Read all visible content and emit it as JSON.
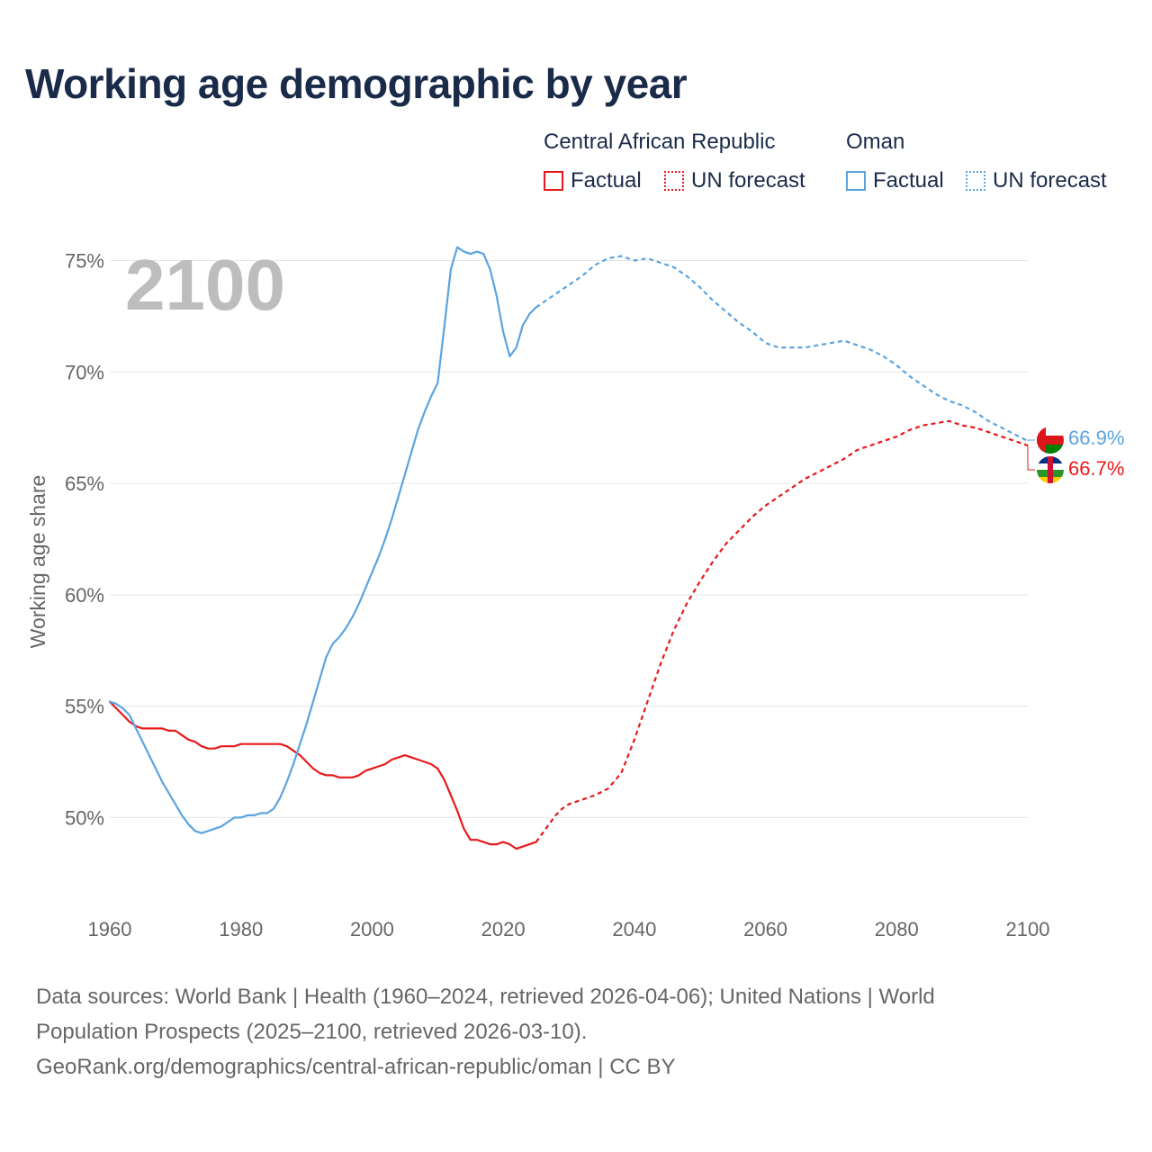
{
  "title": "Working age demographic by year",
  "legend": {
    "groups": [
      {
        "name": "Central African Republic",
        "factual": "Factual",
        "forecast": "UN forecast",
        "color": "#e8191b"
      },
      {
        "name": "Oman",
        "factual": "Factual",
        "forecast": "UN forecast",
        "color": "#5aa4e0"
      }
    ]
  },
  "year_display": "2100",
  "end_labels": {
    "oman": "66.9%",
    "car": "66.7%"
  },
  "flag_icons": {
    "oman": "oman-flag-icon",
    "car": "central-african-republic-flag-icon"
  },
  "source_lines": [
    "Data sources: World Bank | Health (1960–2024, retrieved 2026-04-06); United Nations | World",
    "Population Prospects (2025–2100, retrieved 2026-03-10).",
    "GeoRank.org/demographics/central-african-republic/oman | CC BY"
  ],
  "chart_data": {
    "type": "line",
    "title": "Working age demographic by year",
    "xlabel": "",
    "ylabel": "Working age share",
    "xlim": [
      1960,
      2100
    ],
    "ylim": [
      46.3,
      77
    ],
    "x_ticks": [
      1960,
      1980,
      2000,
      2020,
      2040,
      2060,
      2080,
      2100
    ],
    "y_ticks": [
      50,
      55,
      60,
      65,
      70,
      75
    ],
    "y_tick_labels": [
      "50%",
      "55%",
      "60%",
      "65%",
      "70%",
      "75%"
    ],
    "grid": true,
    "factual_until": 2025,
    "series": [
      {
        "name": "Central African Republic",
        "color": "#e8191b",
        "x": [
          1960,
          1961,
          1962,
          1963,
          1964,
          1965,
          1966,
          1967,
          1968,
          1969,
          1970,
          1971,
          1972,
          1973,
          1974,
          1975,
          1976,
          1977,
          1978,
          1979,
          1980,
          1981,
          1982,
          1983,
          1984,
          1985,
          1986,
          1987,
          1988,
          1989,
          1990,
          1991,
          1992,
          1993,
          1994,
          1995,
          1996,
          1997,
          1998,
          1999,
          2000,
          2001,
          2002,
          2003,
          2004,
          2005,
          2006,
          2007,
          2008,
          2009,
          2010,
          2011,
          2012,
          2013,
          2014,
          2015,
          2016,
          2017,
          2018,
          2019,
          2020,
          2021,
          2022,
          2023,
          2024,
          2025,
          2026,
          2027,
          2028,
          2029,
          2030,
          2032,
          2034,
          2036,
          2038,
          2040,
          2042,
          2044,
          2046,
          2048,
          2050,
          2052,
          2054,
          2056,
          2058,
          2060,
          2062,
          2064,
          2066,
          2068,
          2070,
          2072,
          2074,
          2076,
          2078,
          2080,
          2082,
          2084,
          2086,
          2088,
          2090,
          2092,
          2094,
          2096,
          2098,
          2100
        ],
        "values": [
          55.2,
          54.9,
          54.6,
          54.3,
          54.1,
          54.0,
          54.0,
          54.0,
          54.0,
          53.9,
          53.9,
          53.7,
          53.5,
          53.4,
          53.2,
          53.1,
          53.1,
          53.2,
          53.2,
          53.2,
          53.3,
          53.3,
          53.3,
          53.3,
          53.3,
          53.3,
          53.3,
          53.2,
          53.0,
          52.8,
          52.5,
          52.2,
          52.0,
          51.9,
          51.9,
          51.8,
          51.8,
          51.8,
          51.9,
          52.1,
          52.2,
          52.3,
          52.4,
          52.6,
          52.7,
          52.8,
          52.7,
          52.6,
          52.5,
          52.4,
          52.2,
          51.7,
          51.0,
          50.3,
          49.5,
          49.0,
          49.0,
          48.9,
          48.8,
          48.8,
          48.9,
          48.8,
          48.6,
          48.7,
          48.8,
          48.9,
          49.3,
          49.7,
          50.1,
          50.4,
          50.6,
          50.8,
          51.0,
          51.3,
          52.0,
          53.5,
          55.2,
          56.9,
          58.4,
          59.6,
          60.6,
          61.5,
          62.3,
          62.9,
          63.5,
          64.0,
          64.4,
          64.8,
          65.2,
          65.5,
          65.8,
          66.1,
          66.5,
          66.7,
          66.9,
          67.1,
          67.4,
          67.6,
          67.7,
          67.8,
          67.6,
          67.5,
          67.3,
          67.1,
          66.9,
          66.7
        ]
      },
      {
        "name": "Oman",
        "color": "#5aa4e0",
        "x": [
          1960,
          1961,
          1962,
          1963,
          1964,
          1965,
          1966,
          1967,
          1968,
          1969,
          1970,
          1971,
          1972,
          1973,
          1974,
          1975,
          1976,
          1977,
          1978,
          1979,
          1980,
          1981,
          1982,
          1983,
          1984,
          1985,
          1986,
          1987,
          1988,
          1989,
          1990,
          1991,
          1992,
          1993,
          1994,
          1995,
          1996,
          1997,
          1998,
          1999,
          2000,
          2001,
          2002,
          2003,
          2004,
          2005,
          2006,
          2007,
          2008,
          2009,
          2010,
          2011,
          2012,
          2013,
          2014,
          2015,
          2016,
          2017,
          2018,
          2019,
          2020,
          2021,
          2022,
          2023,
          2024,
          2025,
          2026,
          2027,
          2028,
          2030,
          2032,
          2034,
          2036,
          2038,
          2040,
          2042,
          2044,
          2046,
          2048,
          2050,
          2052,
          2054,
          2056,
          2058,
          2060,
          2062,
          2064,
          2066,
          2068,
          2070,
          2072,
          2074,
          2076,
          2078,
          2080,
          2082,
          2084,
          2086,
          2088,
          2090,
          2092,
          2094,
          2096,
          2098,
          2100
        ],
        "values": [
          55.2,
          55.1,
          54.9,
          54.6,
          54.0,
          53.4,
          52.8,
          52.2,
          51.6,
          51.1,
          50.6,
          50.1,
          49.7,
          49.4,
          49.3,
          49.4,
          49.5,
          49.6,
          49.8,
          50.0,
          50.0,
          50.1,
          50.1,
          50.2,
          50.2,
          50.4,
          50.9,
          51.6,
          52.4,
          53.3,
          54.2,
          55.2,
          56.2,
          57.2,
          57.8,
          58.1,
          58.5,
          59.0,
          59.6,
          60.3,
          61.0,
          61.7,
          62.5,
          63.4,
          64.4,
          65.4,
          66.4,
          67.4,
          68.2,
          68.9,
          69.5,
          72.0,
          74.6,
          75.6,
          75.4,
          75.3,
          75.4,
          75.3,
          74.6,
          73.4,
          71.8,
          70.7,
          71.1,
          72.1,
          72.6,
          72.9,
          73.1,
          73.3,
          73.5,
          73.9,
          74.3,
          74.8,
          75.1,
          75.2,
          75.0,
          75.1,
          74.9,
          74.7,
          74.3,
          73.8,
          73.2,
          72.7,
          72.2,
          71.8,
          71.3,
          71.1,
          71.1,
          71.1,
          71.2,
          71.3,
          71.4,
          71.2,
          71.0,
          70.7,
          70.3,
          69.8,
          69.4,
          69.0,
          68.7,
          68.5,
          68.2,
          67.8,
          67.5,
          67.2,
          66.9
        ]
      }
    ]
  }
}
